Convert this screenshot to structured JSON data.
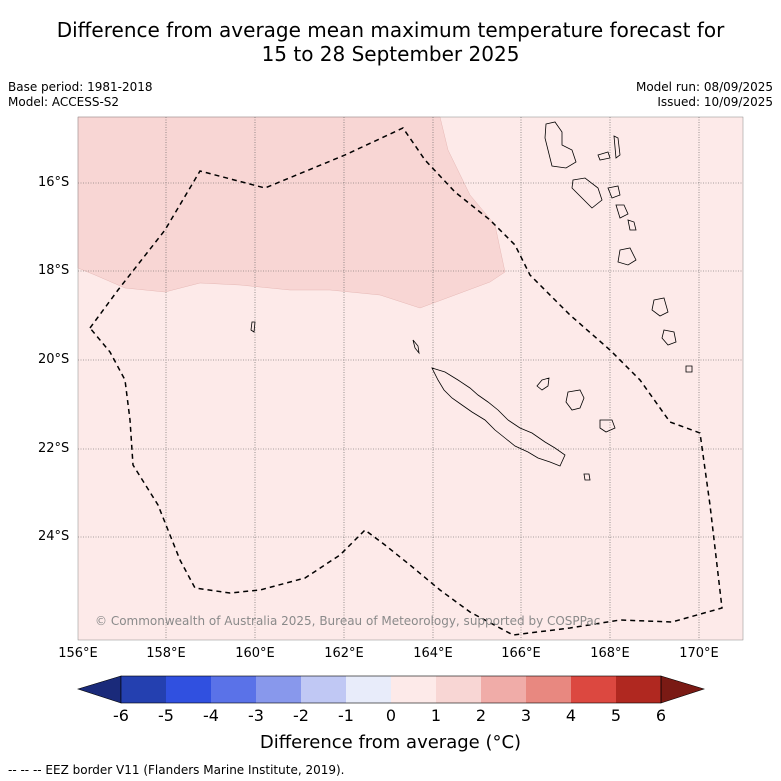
{
  "title_line1": "Difference from average mean maximum temperature forecast for",
  "title_line2": "15 to 28 September 2025",
  "base_period": "Base period: 1981-2018",
  "model": "Model: ACCESS-S2",
  "model_run": "Model run: 08/09/2025",
  "issued": "Issued: 10/09/2025",
  "copyright": "© Commonwealth of Australia 2025, Bureau of Meteorology, supported by COSPPac",
  "lat_labels": [
    "16°S",
    "18°S",
    "20°S",
    "22°S",
    "24°S"
  ],
  "lon_labels": [
    "156°E",
    "158°E",
    "160°E",
    "162°E",
    "164°E",
    "166°E",
    "168°E",
    "170°E"
  ],
  "colorbar": {
    "title": "Difference from average (°C)",
    "ticks": [
      "-6",
      "-5",
      "-4",
      "-3",
      "-2",
      "-1",
      "0",
      "1",
      "2",
      "3",
      "4",
      "5",
      "6"
    ],
    "colors": [
      "#1a2a7a",
      "#2440b0",
      "#3050e0",
      "#5a72e8",
      "#8898ec",
      "#c0c8f4",
      "#e8ecfa",
      "#fdeae9",
      "#f8d6d4",
      "#f0aca8",
      "#e88880",
      "#dc4840",
      "#b02820",
      "#7a1a14"
    ]
  },
  "footnote": "-- -- -- EEZ border V11 (Flanders Marine Institute, 2019)."
}
